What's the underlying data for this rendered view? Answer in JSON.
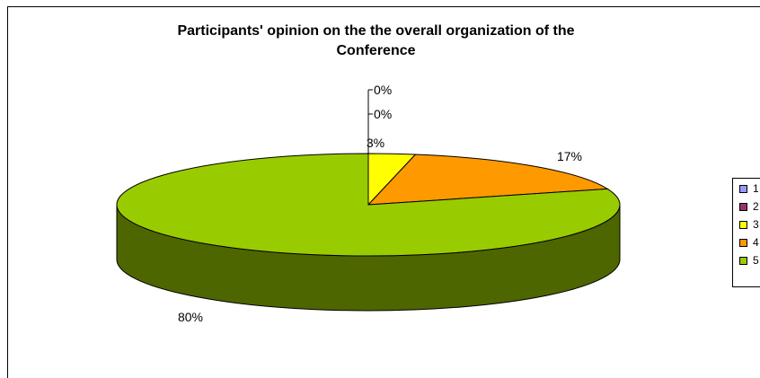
{
  "chart_data": {
    "type": "pie",
    "title_lines": [
      "Participants' opinion on the the overall organization of the",
      "Conference"
    ],
    "categories": [
      "1",
      "2",
      "3",
      "4",
      "5"
    ],
    "values": [
      0,
      0,
      3,
      17,
      80
    ],
    "data_labels": [
      "0%",
      "0%",
      "3%",
      "17%",
      "80%"
    ],
    "colors": [
      "#9999ff",
      "#993366",
      "#ffff00",
      "#ff9900",
      "#99cc00"
    ],
    "side_colors": [
      "#5c5c99",
      "#5c1f3d",
      "#999900",
      "#995c00",
      "#4d6600"
    ],
    "legend_position": "right",
    "three_d": true
  }
}
